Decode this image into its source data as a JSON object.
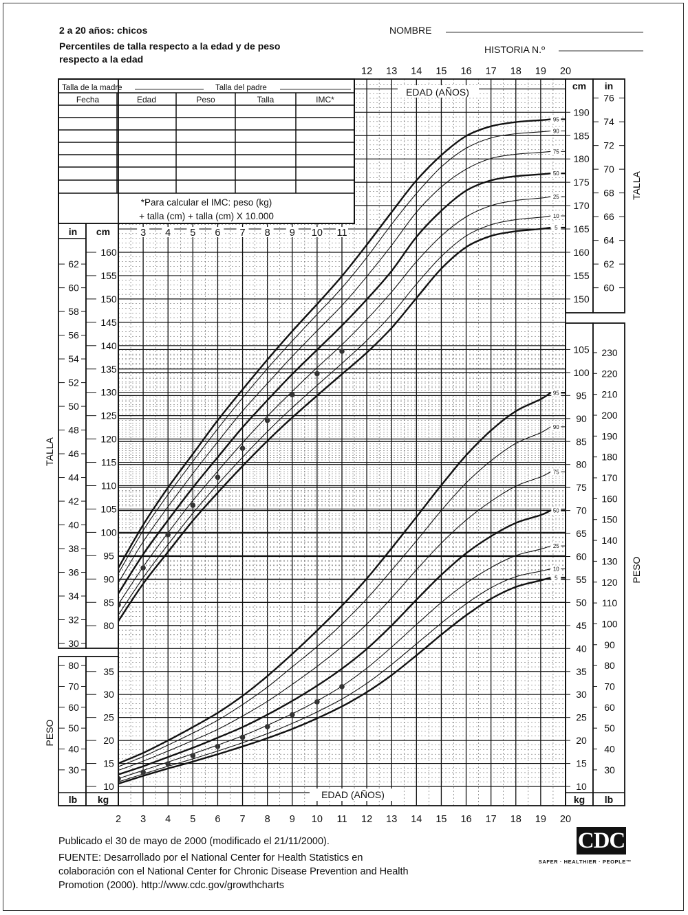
{
  "header": {
    "title": "2 a 20 años: chicos",
    "subtitle_line1": "Percentiles de talla respecto a la edad y de peso",
    "subtitle_line2": "respecto a la edad",
    "name_label": "NOMBRE",
    "record_label": "HISTORIA N.º"
  },
  "record_table": {
    "mother_height_label": "Talla de la madre",
    "father_height_label": "Talla del padre",
    "columns": [
      "Fecha",
      "Edad",
      "Peso",
      "Talla",
      "IMC*"
    ],
    "empty_rows": 7,
    "bmi_note_line1": "*Para calcular el IMC: peso (kg)",
    "bmi_note_line2": "+ talla (cm) + talla (cm) X 10.000"
  },
  "chart_data": {
    "type": "line",
    "xlabel": "EDAD (AÑOS)",
    "xlim": [
      2,
      20
    ],
    "x_ticks": [
      2,
      3,
      4,
      5,
      6,
      7,
      8,
      9,
      10,
      11,
      12,
      13,
      14,
      15,
      16,
      17,
      18,
      19,
      20
    ],
    "grid": true,
    "stature": {
      "ylabel": "TALLA",
      "unit_cm": "cm",
      "unit_in": "in",
      "left_cm_ticks": [
        80,
        85,
        90,
        95,
        100,
        105,
        110,
        115,
        120,
        125,
        130,
        135,
        140,
        145,
        150,
        155,
        160
      ],
      "left_in_ticks": [
        30,
        32,
        34,
        36,
        38,
        40,
        42,
        44,
        46,
        48,
        50,
        52,
        54,
        56,
        58,
        60,
        62
      ],
      "right_cm_ticks": [
        150,
        155,
        160,
        165,
        170,
        175,
        180,
        185,
        190
      ],
      "right_in_ticks": [
        60,
        62,
        64,
        66,
        68,
        70,
        72,
        74,
        76
      ],
      "percentiles": [
        {
          "name": "5",
          "values": [
            81.0,
            89.0,
            95.8,
            102.5,
            108.5,
            114.2,
            119.6,
            124.6,
            129.3,
            133.9,
            138.5,
            143.8,
            150.2,
            156.5,
            161.1,
            163.5,
            164.5,
            165.0,
            165.3
          ]
        },
        {
          "name": "10",
          "values": [
            82.3,
            90.3,
            97.4,
            104.1,
            110.3,
            116.1,
            121.6,
            126.7,
            131.5,
            136.2,
            141.1,
            146.7,
            153.2,
            159.1,
            163.5,
            165.9,
            167.0,
            167.5,
            167.8
          ]
        },
        {
          "name": "25",
          "values": [
            84.6,
            92.6,
            99.9,
            106.8,
            113.1,
            119.2,
            124.9,
            130.2,
            135.3,
            140.2,
            145.6,
            151.5,
            158.0,
            163.5,
            167.6,
            170.0,
            171.1,
            171.6,
            171.9
          ]
        },
        {
          "name": "50",
          "values": [
            86.9,
            95.3,
            102.6,
            109.6,
            116.1,
            122.5,
            128.3,
            133.9,
            139.1,
            144.3,
            149.9,
            156.0,
            163.3,
            168.9,
            173.2,
            175.4,
            176.3,
            176.7,
            176.9
          ]
        },
        {
          "name": "75",
          "values": [
            89.2,
            98.0,
            105.5,
            112.6,
            119.4,
            126.0,
            131.9,
            137.7,
            143.2,
            148.6,
            154.8,
            161.5,
            168.6,
            174.0,
            177.8,
            180.1,
            181.0,
            181.4,
            181.6
          ]
        },
        {
          "name": "90",
          "values": [
            91.2,
            100.4,
            108.1,
            115.2,
            122.2,
            128.8,
            135.1,
            141.0,
            146.7,
            152.4,
            158.9,
            166.0,
            172.6,
            178.3,
            182.3,
            184.5,
            185.4,
            185.8,
            186.0
          ]
        },
        {
          "name": "95",
          "values": [
            92.4,
            101.6,
            109.6,
            116.8,
            124.0,
            130.6,
            137.0,
            143.1,
            148.9,
            154.9,
            161.6,
            168.6,
            175.4,
            180.8,
            184.9,
            187.0,
            187.9,
            188.3,
            188.5
          ]
        }
      ],
      "measurements": [
        {
          "age": 2,
          "cm": 84.5
        },
        {
          "age": 3,
          "cm": 92.4
        },
        {
          "age": 4,
          "cm": 99.5
        },
        {
          "age": 5,
          "cm": 105.8
        },
        {
          "age": 6,
          "cm": 111.8
        },
        {
          "age": 7,
          "cm": 118.0
        },
        {
          "age": 8,
          "cm": 124.0
        },
        {
          "age": 9,
          "cm": 129.5
        },
        {
          "age": 10,
          "cm": 134.0
        },
        {
          "age": 11,
          "cm": 138.8
        }
      ]
    },
    "weight": {
      "ylabel": "PESO",
      "unit_kg": "kg",
      "unit_lb": "lb",
      "left_kg_ticks": [
        10,
        15,
        20,
        25,
        30,
        35
      ],
      "left_lb_ticks": [
        30,
        40,
        50,
        60,
        70,
        80
      ],
      "right_kg_ticks": [
        10,
        15,
        20,
        25,
        30,
        35,
        40,
        45,
        50,
        55,
        60,
        65,
        70,
        75,
        80,
        85,
        90,
        95,
        100,
        105
      ],
      "right_lb_ticks": [
        30,
        40,
        50,
        60,
        70,
        80,
        90,
        100,
        110,
        120,
        130,
        140,
        150,
        160,
        170,
        180,
        190,
        200,
        210,
        220,
        230
      ],
      "percentiles": [
        {
          "name": "5",
          "values": [
            10.6,
            12.3,
            13.9,
            15.4,
            17.0,
            18.7,
            20.5,
            22.5,
            24.8,
            27.4,
            30.5,
            34.2,
            38.5,
            43.0,
            47.2,
            50.8,
            53.4,
            54.8,
            55.4
          ]
        },
        {
          "name": "10",
          "values": [
            11.0,
            12.7,
            14.4,
            16.0,
            17.7,
            19.5,
            21.5,
            23.7,
            26.2,
            29.0,
            32.4,
            36.5,
            41.0,
            45.5,
            49.7,
            53.2,
            55.6,
            56.8,
            57.3
          ]
        },
        {
          "name": "25",
          "values": [
            11.7,
            13.5,
            15.3,
            17.1,
            19.0,
            21.0,
            23.3,
            25.8,
            28.6,
            31.8,
            35.7,
            40.3,
            45.2,
            50.0,
            54.2,
            57.6,
            60.2,
            61.6,
            62.3
          ]
        },
        {
          "name": "50",
          "values": [
            12.6,
            14.4,
            16.4,
            18.4,
            20.6,
            22.9,
            25.6,
            28.6,
            31.9,
            35.6,
            39.9,
            45.0,
            50.6,
            56.0,
            60.7,
            64.4,
            67.3,
            69.0,
            70.0
          ]
        },
        {
          "name": "75",
          "values": [
            13.5,
            15.5,
            17.7,
            20.0,
            22.4,
            25.3,
            28.5,
            32.2,
            36.1,
            40.4,
            45.3,
            51.0,
            57.1,
            62.9,
            67.9,
            72.0,
            75.3,
            77.3,
            78.4
          ]
        },
        {
          "name": "90",
          "values": [
            14.3,
            16.5,
            19.0,
            21.6,
            24.4,
            27.8,
            31.6,
            36.0,
            40.4,
            45.3,
            50.8,
            57.0,
            63.4,
            70.0,
            76.0,
            80.8,
            84.6,
            86.9,
            88.2
          ]
        },
        {
          "name": "95",
          "values": [
            15.0,
            17.3,
            20.0,
            22.9,
            26.0,
            29.7,
            34.0,
            38.8,
            43.9,
            49.3,
            55.2,
            61.8,
            68.6,
            75.5,
            82.0,
            87.4,
            91.6,
            94.2,
            95.6
          ]
        }
      ],
      "measurements": [
        {
          "age": 2,
          "kg": 11.7
        },
        {
          "age": 3,
          "kg": 13.1
        },
        {
          "age": 4,
          "kg": 14.9
        },
        {
          "age": 5,
          "kg": 16.7
        },
        {
          "age": 6,
          "kg": 18.7
        },
        {
          "age": 7,
          "kg": 20.7
        },
        {
          "age": 8,
          "kg": 23.0
        },
        {
          "age": 9,
          "kg": 25.6
        },
        {
          "age": 10,
          "kg": 28.4
        },
        {
          "age": 11,
          "kg": 31.7
        }
      ]
    }
  },
  "footer": {
    "published": "Publicado el 30 de mayo de 2000 (modificado el 21/11/2000).",
    "source_line1": "FUENTE: Desarrollado por el National Center for Health Statistics en",
    "source_line2": "colaboración con el National Center for Chronic Disease Prevention and Health",
    "source_line3": "Promotion (2000). http://www.cdc.gov/growthcharts",
    "logo_text": "CDC",
    "logo_tagline": "SAFER · HEALTHIER · PEOPLE™"
  },
  "colors": {
    "ink": "#111111",
    "grid": "#555555",
    "paper": "#ffffff"
  }
}
